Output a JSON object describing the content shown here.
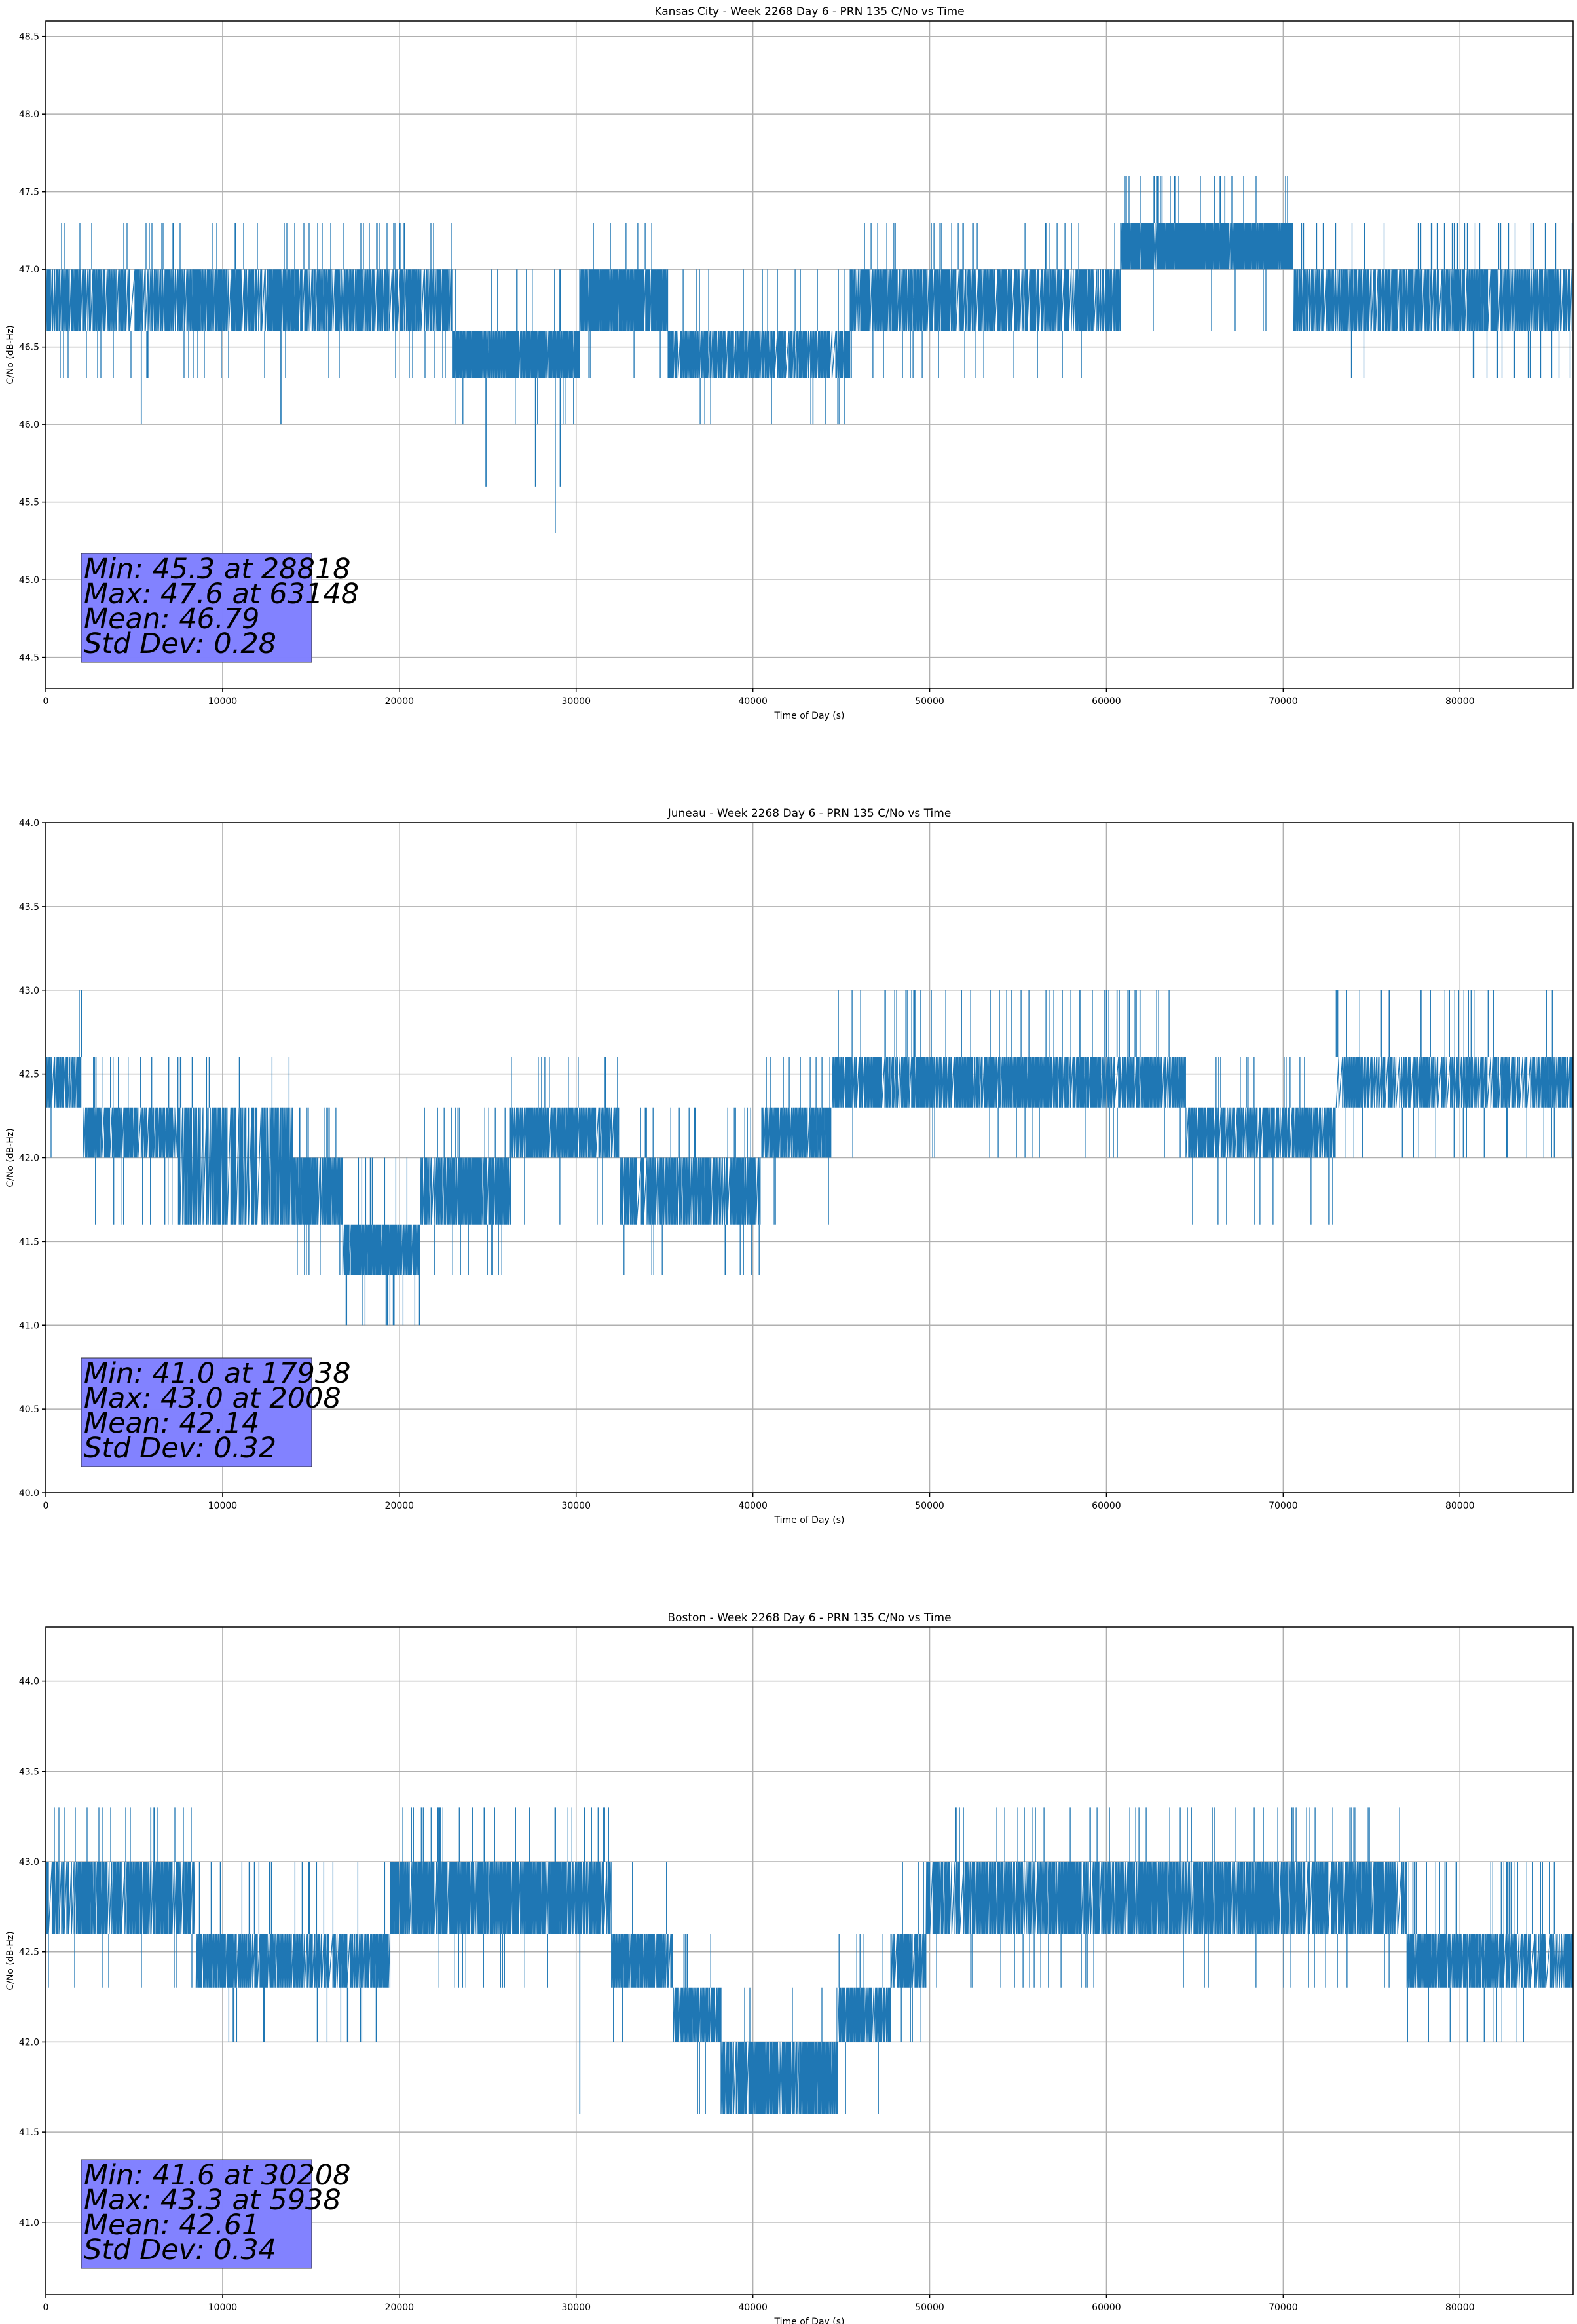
{
  "chart_data": [
    {
      "type": "line",
      "title": "Kansas City - Week 2268 Day 6 - PRN 135 C/No vs Time",
      "xlabel": "Time of Day (s)",
      "ylabel": "C/No (dB-Hz)",
      "xlim": [
        0,
        86400
      ],
      "ylim": [
        44.3,
        48.6
      ],
      "xticks": [
        0,
        10000,
        20000,
        30000,
        40000,
        50000,
        60000,
        70000,
        80000
      ],
      "xtick_labels": [
        "0",
        "10000",
        "20000",
        "30000",
        "40000",
        "50000",
        "60000",
        "70000",
        "80000"
      ],
      "yticks": [
        44.5,
        45.0,
        45.5,
        46.0,
        46.5,
        47.0,
        47.5,
        48.0,
        48.5
      ],
      "ytick_labels": [
        "44.5",
        "45.0",
        "45.5",
        "46.0",
        "46.5",
        "47.0",
        "47.5",
        "48.0",
        "48.5"
      ],
      "grid": true,
      "line_color": "#1f77b4",
      "series": [
        {
          "name": "PRN 135 C/No",
          "bands": [
            {
              "x0": 0,
              "x1": 23000,
              "levels": [
                46.6,
                47.0
              ],
              "up": 47.3,
              "down": 46.3,
              "dense": 0.6
            },
            {
              "x0": 23000,
              "x1": 30200,
              "levels": [
                46.3,
                46.6
              ],
              "up": 47.0,
              "down": 46.0,
              "dense": 0.8
            },
            {
              "x0": 30200,
              "x1": 35200,
              "levels": [
                46.6,
                47.0
              ],
              "up": 47.3,
              "down": 46.3,
              "dense": 0.8
            },
            {
              "x0": 35200,
              "x1": 45500,
              "levels": [
                46.3,
                46.6
              ],
              "up": 47.0,
              "down": 46.0,
              "dense": 0.6
            },
            {
              "x0": 45500,
              "x1": 60800,
              "levels": [
                46.6,
                47.0
              ],
              "up": 47.3,
              "down": 46.3,
              "dense": 0.6
            },
            {
              "x0": 60800,
              "x1": 70600,
              "levels": [
                47.0,
                47.3
              ],
              "up": 47.6,
              "down": 46.6,
              "dense": 0.9
            },
            {
              "x0": 70600,
              "x1": 86400,
              "levels": [
                46.6,
                47.0
              ],
              "up": 47.3,
              "down": 46.3,
              "dense": 0.6
            }
          ],
          "extremes": [
            {
              "x": 5400,
              "y": 46.0
            },
            {
              "x": 13300,
              "y": 46.0
            },
            {
              "x": 24900,
              "y": 45.6
            },
            {
              "x": 27700,
              "y": 45.6
            },
            {
              "x": 28818,
              "y": 45.3
            },
            {
              "x": 29100,
              "y": 45.6
            },
            {
              "x": 43400,
              "y": 46.0
            },
            {
              "x": 62700,
              "y": 47.6
            },
            {
              "x": 63148,
              "y": 47.6
            },
            {
              "x": 66100,
              "y": 47.6
            },
            {
              "x": 66700,
              "y": 47.6
            }
          ]
        }
      ],
      "stats": {
        "lines": [
          "Min: 45.3 at 28818",
          "Max: 47.6 at 63148",
          "Mean: 46.79",
          "Std Dev: 0.28"
        ],
        "box_color": "#8080ff"
      }
    },
    {
      "type": "line",
      "title": "Juneau - Week 2268 Day 6 - PRN 135 C/No vs Time",
      "xlabel": "Time of Day (s)",
      "ylabel": "C/No (dB-Hz)",
      "xlim": [
        0,
        86400
      ],
      "ylim": [
        40.0,
        44.0
      ],
      "xticks": [
        0,
        10000,
        20000,
        30000,
        40000,
        50000,
        60000,
        70000,
        80000
      ],
      "xtick_labels": [
        "0",
        "10000",
        "20000",
        "30000",
        "40000",
        "50000",
        "60000",
        "70000",
        "80000"
      ],
      "yticks": [
        40.0,
        40.5,
        41.0,
        41.5,
        42.0,
        42.5,
        43.0,
        43.5,
        44.0
      ],
      "ytick_labels": [
        "40.0",
        "40.5",
        "41.0",
        "41.5",
        "42.0",
        "42.5",
        "43.0",
        "43.5",
        "44.0"
      ],
      "grid": true,
      "line_color": "#1f77b4",
      "series": [
        {
          "name": "PRN 135 C/No",
          "bands": [
            {
              "x0": 0,
              "x1": 2100,
              "levels": [
                42.3,
                42.6
              ],
              "up": 43.0,
              "down": 42.0,
              "dense": 0.6
            },
            {
              "x0": 2100,
              "x1": 7500,
              "levels": [
                42.0,
                42.3
              ],
              "up": 42.6,
              "down": 41.6,
              "dense": 0.6
            },
            {
              "x0": 7500,
              "x1": 14000,
              "levels": [
                41.6,
                42.3
              ],
              "up": 42.6,
              "down": 41.6,
              "dense": 0.5
            },
            {
              "x0": 14000,
              "x1": 16800,
              "levels": [
                41.6,
                42.0
              ],
              "up": 42.3,
              "down": 41.3,
              "dense": 0.7
            },
            {
              "x0": 16800,
              "x1": 21200,
              "levels": [
                41.3,
                41.6
              ],
              "up": 42.0,
              "down": 41.0,
              "dense": 0.8
            },
            {
              "x0": 21200,
              "x1": 26300,
              "levels": [
                41.6,
                42.0
              ],
              "up": 42.3,
              "down": 41.3,
              "dense": 0.7
            },
            {
              "x0": 26300,
              "x1": 32500,
              "levels": [
                42.0,
                42.3
              ],
              "up": 42.6,
              "down": 41.6,
              "dense": 0.6
            },
            {
              "x0": 32500,
              "x1": 40500,
              "levels": [
                41.6,
                42.0
              ],
              "up": 42.3,
              "down": 41.3,
              "dense": 0.6
            },
            {
              "x0": 40500,
              "x1": 44500,
              "levels": [
                42.0,
                42.3
              ],
              "up": 42.6,
              "down": 41.6,
              "dense": 0.6
            },
            {
              "x0": 44500,
              "x1": 64500,
              "levels": [
                42.3,
                42.6
              ],
              "up": 43.0,
              "down": 42.0,
              "dense": 0.6
            },
            {
              "x0": 64500,
              "x1": 73000,
              "levels": [
                42.0,
                42.3
              ],
              "up": 42.6,
              "down": 41.6,
              "dense": 0.6
            },
            {
              "x0": 73000,
              "x1": 86400,
              "levels": [
                42.3,
                42.6
              ],
              "up": 43.0,
              "down": 42.0,
              "dense": 0.5
            }
          ],
          "extremes": [
            {
              "x": 2008,
              "y": 43.0
            },
            {
              "x": 17938,
              "y": 41.0
            },
            {
              "x": 19300,
              "y": 41.0
            },
            {
              "x": 19700,
              "y": 41.0
            },
            {
              "x": 49500,
              "y": 43.0
            },
            {
              "x": 51800,
              "y": 43.0
            },
            {
              "x": 58500,
              "y": 43.0
            },
            {
              "x": 59200,
              "y": 43.0
            },
            {
              "x": 60000,
              "y": 43.0
            },
            {
              "x": 60600,
              "y": 43.0
            },
            {
              "x": 61300,
              "y": 43.0
            },
            {
              "x": 61900,
              "y": 43.0
            },
            {
              "x": 76000,
              "y": 43.0
            },
            {
              "x": 77800,
              "y": 43.0
            }
          ]
        }
      ],
      "stats": {
        "lines": [
          "Min: 41.0 at 17938",
          "Max: 43.0 at 2008",
          "Mean: 42.14",
          "Std Dev: 0.32"
        ],
        "box_color": "#8080ff"
      }
    },
    {
      "type": "line",
      "title": "Boston - Week 2268 Day 6 - PRN 135 C/No vs Time",
      "xlabel": "Time of Day (s)",
      "ylabel": "C/No (dB-Hz)",
      "xlim": [
        0,
        86400
      ],
      "ylim": [
        40.6,
        44.3
      ],
      "xticks": [
        0,
        10000,
        20000,
        30000,
        40000,
        50000,
        60000,
        70000,
        80000
      ],
      "xtick_labels": [
        "0",
        "10000",
        "20000",
        "30000",
        "40000",
        "50000",
        "60000",
        "70000",
        "80000"
      ],
      "yticks": [
        41.0,
        41.5,
        42.0,
        42.5,
        43.0,
        43.5,
        44.0
      ],
      "ytick_labels": [
        "41.0",
        "41.5",
        "42.0",
        "42.5",
        "43.0",
        "43.5",
        "44.0"
      ],
      "grid": true,
      "line_color": "#1f77b4",
      "series": [
        {
          "name": "PRN 135 C/No",
          "bands": [
            {
              "x0": 0,
              "x1": 8500,
              "levels": [
                42.6,
                43.0
              ],
              "up": 43.3,
              "down": 42.3,
              "dense": 0.6
            },
            {
              "x0": 8500,
              "x1": 19500,
              "levels": [
                42.3,
                42.6
              ],
              "up": 43.0,
              "down": 42.0,
              "dense": 0.6
            },
            {
              "x0": 19500,
              "x1": 32000,
              "levels": [
                42.6,
                43.0
              ],
              "up": 43.3,
              "down": 42.3,
              "dense": 0.7
            },
            {
              "x0": 32000,
              "x1": 35500,
              "levels": [
                42.3,
                42.6
              ],
              "up": 43.0,
              "down": 42.0,
              "dense": 0.7
            },
            {
              "x0": 35500,
              "x1": 38200,
              "levels": [
                42.0,
                42.3
              ],
              "up": 42.6,
              "down": 41.6,
              "dense": 0.7
            },
            {
              "x0": 38200,
              "x1": 44800,
              "levels": [
                41.6,
                42.0
              ],
              "up": 42.3,
              "down": 41.6,
              "dense": 0.7
            },
            {
              "x0": 44800,
              "x1": 47800,
              "levels": [
                42.0,
                42.3
              ],
              "up": 42.6,
              "down": 41.6,
              "dense": 0.7
            },
            {
              "x0": 47800,
              "x1": 49800,
              "levels": [
                42.3,
                42.6
              ],
              "up": 43.0,
              "down": 42.0,
              "dense": 0.7
            },
            {
              "x0": 49800,
              "x1": 77000,
              "levels": [
                42.6,
                43.0
              ],
              "up": 43.3,
              "down": 42.3,
              "dense": 0.6
            },
            {
              "x0": 77000,
              "x1": 86400,
              "levels": [
                42.3,
                42.6
              ],
              "up": 43.0,
              "down": 42.0,
              "dense": 0.6
            }
          ],
          "extremes": [
            {
              "x": 5938,
              "y": 43.3
            },
            {
              "x": 10600,
              "y": 42.0
            },
            {
              "x": 30208,
              "y": 41.6
            },
            {
              "x": 20200,
              "y": 43.3
            },
            {
              "x": 24800,
              "y": 43.3
            },
            {
              "x": 64800,
              "y": 43.3
            },
            {
              "x": 70500,
              "y": 43.3
            }
          ]
        }
      ],
      "stats": {
        "lines": [
          "Min: 41.6 at 30208",
          "Max: 43.3 at 5938",
          "Mean: 42.61",
          "Std Dev: 0.34"
        ],
        "box_color": "#8080ff"
      }
    }
  ]
}
